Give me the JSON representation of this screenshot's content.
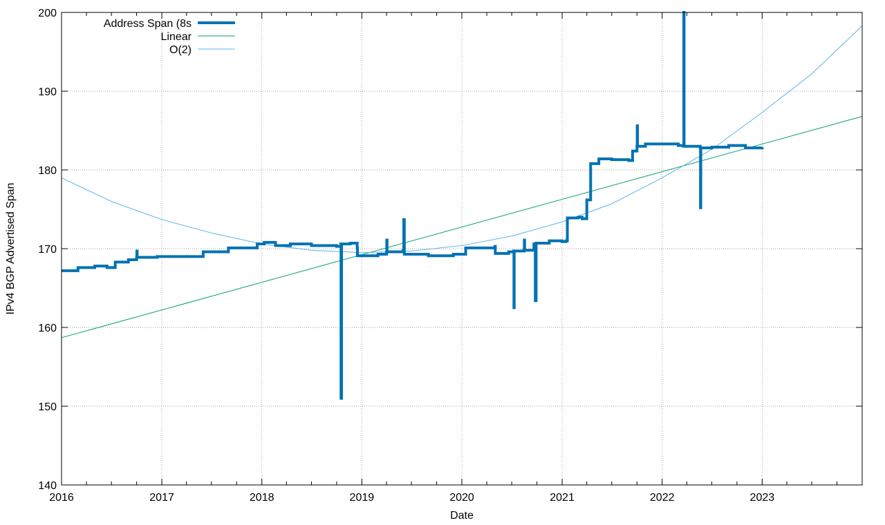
{
  "chart_data": {
    "type": "line",
    "title": "",
    "xlabel": "Date",
    "ylabel": "IPv4 BGP Advertised Span",
    "xlim": [
      "2016-01-01",
      "2024-01-01"
    ],
    "ylim": [
      140,
      200
    ],
    "x_ticks": [
      "2016",
      "2017",
      "2018",
      "2019",
      "2020",
      "2021",
      "2022",
      "2023"
    ],
    "y_ticks": [
      140,
      150,
      160,
      170,
      180,
      190,
      200
    ],
    "grid": true,
    "legend_position": "top-left",
    "colors": {
      "data": "#0072b2",
      "linear": "#009e73",
      "quadratic": "#56b4e9"
    },
    "series": [
      {
        "name": "Address Span (8s",
        "color": "#0072b2",
        "points": [
          [
            "2016-01-01",
            167.2
          ],
          [
            "2016-03-01",
            167.6
          ],
          [
            "2016-05-01",
            167.8
          ],
          [
            "2016-06-15",
            167.6
          ],
          [
            "2016-07-15",
            168.3
          ],
          [
            "2016-09-01",
            168.6
          ],
          [
            "2016-10-01",
            168.9
          ],
          [
            "2016-10-02",
            169.7
          ],
          [
            "2016-10-03",
            168.9
          ],
          [
            "2016-12-15",
            169.0
          ],
          [
            "2017-03-01",
            169.0
          ],
          [
            "2017-06-01",
            169.6
          ],
          [
            "2017-09-01",
            170.1
          ],
          [
            "2017-12-15",
            170.6
          ],
          [
            "2018-01-10",
            170.8
          ],
          [
            "2018-02-20",
            170.4
          ],
          [
            "2018-04-15",
            170.6
          ],
          [
            "2018-07-01",
            170.4
          ],
          [
            "2018-10-01",
            170.3
          ],
          [
            "2018-10-16",
            170.6
          ],
          [
            "2018-10-17",
            151.0
          ],
          [
            "2018-10-19",
            170.6
          ],
          [
            "2018-11-20",
            170.7
          ],
          [
            "2018-12-15",
            170.1
          ],
          [
            "2018-12-16",
            169.1
          ],
          [
            "2019-03-01",
            169.3
          ],
          [
            "2019-04-01",
            169.5
          ],
          [
            "2019-04-02",
            171.1
          ],
          [
            "2019-04-03",
            169.6
          ],
          [
            "2019-06-01",
            169.8
          ],
          [
            "2019-06-03",
            173.7
          ],
          [
            "2019-06-05",
            169.3
          ],
          [
            "2019-09-01",
            169.1
          ],
          [
            "2019-12-01",
            169.3
          ],
          [
            "2020-01-15",
            170.1
          ],
          [
            "2020-04-01",
            170.1
          ],
          [
            "2020-05-01",
            170.3
          ],
          [
            "2020-05-02",
            169.4
          ],
          [
            "2020-06-20",
            169.6
          ],
          [
            "2020-07-08",
            169.7
          ],
          [
            "2020-07-09",
            162.5
          ],
          [
            "2020-07-10",
            169.7
          ],
          [
            "2020-08-15",
            169.8
          ],
          [
            "2020-08-16",
            171.1
          ],
          [
            "2020-08-17",
            169.8
          ],
          [
            "2020-09-20",
            170.6
          ],
          [
            "2020-09-25",
            163.4
          ],
          [
            "2020-09-28",
            170.7
          ],
          [
            "2020-11-15",
            171.0
          ],
          [
            "2021-01-01",
            170.9
          ],
          [
            "2021-01-15",
            171.0
          ],
          [
            "2021-01-20",
            173.9
          ],
          [
            "2021-03-01",
            174.0
          ],
          [
            "2021-03-15",
            173.8
          ],
          [
            "2021-04-01",
            176.2
          ],
          [
            "2021-04-15",
            180.8
          ],
          [
            "2021-05-15",
            181.4
          ],
          [
            "2021-07-01",
            181.3
          ],
          [
            "2021-09-01",
            181.2
          ],
          [
            "2021-09-15",
            182.4
          ],
          [
            "2021-10-01",
            183.0
          ],
          [
            "2021-10-02",
            185.6
          ],
          [
            "2021-10-03",
            183.0
          ],
          [
            "2021-11-01",
            183.3
          ],
          [
            "2022-03-01",
            183.1
          ],
          [
            "2022-03-20",
            183.0
          ],
          [
            "2022-03-21",
            200.0
          ],
          [
            "2022-03-22",
            183.0
          ],
          [
            "2022-05-20",
            182.8
          ],
          [
            "2022-05-21",
            175.2
          ],
          [
            "2022-05-22",
            182.8
          ],
          [
            "2022-07-01",
            182.9
          ],
          [
            "2022-09-01",
            183.1
          ],
          [
            "2022-11-01",
            182.8
          ],
          [
            "2023-01-01",
            182.9
          ]
        ]
      },
      {
        "name": "Linear",
        "color": "#009e73",
        "points": [
          [
            "2016-01-01",
            158.7
          ],
          [
            "2024-01-01",
            186.8
          ]
        ]
      },
      {
        "name": "O(2)",
        "color": "#56b4e9",
        "points": [
          [
            "2016-01-01",
            179.0
          ],
          [
            "2016-07-01",
            176.0
          ],
          [
            "2017-01-01",
            173.7
          ],
          [
            "2017-07-01",
            172.0
          ],
          [
            "2018-01-01",
            170.6
          ],
          [
            "2018-07-01",
            169.8
          ],
          [
            "2019-01-01",
            169.5
          ],
          [
            "2019-07-01",
            169.7
          ],
          [
            "2020-01-01",
            170.4
          ],
          [
            "2020-07-01",
            171.6
          ],
          [
            "2021-01-01",
            173.4
          ],
          [
            "2021-07-01",
            175.7
          ],
          [
            "2022-01-01",
            179.0
          ],
          [
            "2022-07-01",
            182.6
          ],
          [
            "2023-01-01",
            187.3
          ],
          [
            "2023-07-01",
            192.2
          ],
          [
            "2024-01-01",
            198.3
          ]
        ]
      }
    ]
  }
}
